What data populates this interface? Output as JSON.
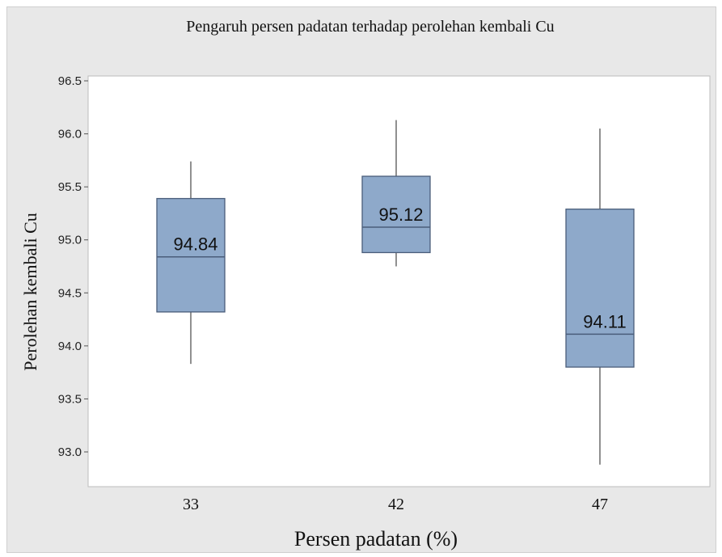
{
  "chart_data": {
    "type": "boxplot",
    "title": "Pengaruh persen padatan terhadap perolehan kembali Cu",
    "xlabel": "Persen padatan (%)",
    "ylabel": "Perolehan kembali Cu",
    "ylim": [
      92.8,
      96.5
    ],
    "yticks": [
      "93.0",
      "93.5",
      "94.0",
      "94.5",
      "95.0",
      "95.5",
      "96.0",
      "96.5"
    ],
    "categories": [
      "33",
      "42",
      "47"
    ],
    "boxes": [
      {
        "category": "33",
        "min": 93.83,
        "q1": 94.32,
        "median": 94.84,
        "q3": 95.39,
        "max": 95.74,
        "label": "94.84"
      },
      {
        "category": "42",
        "min": 94.75,
        "q1": 94.88,
        "median": 95.12,
        "q3": 95.6,
        "max": 96.13,
        "label": "95.12"
      },
      {
        "category": "47",
        "min": 92.88,
        "q1": 93.8,
        "median": 94.11,
        "q3": 95.29,
        "max": 96.05,
        "label": "94.11"
      }
    ],
    "grid": false,
    "colors": {
      "box_fill": "#8ea9ca",
      "box_stroke": "#4a5d7a",
      "whisker": "#555555",
      "plot_bg": "#ffffff",
      "frame_bg": "#e8e8e8"
    }
  }
}
